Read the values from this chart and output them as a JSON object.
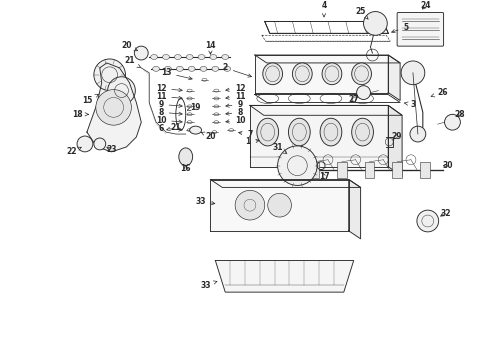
{
  "background_color": "#ffffff",
  "line_color": "#2a2a2a",
  "label_color": "#111111",
  "fig_width": 4.9,
  "fig_height": 3.6,
  "dpi": 100,
  "lw": 0.65,
  "label_fs": 5.5
}
